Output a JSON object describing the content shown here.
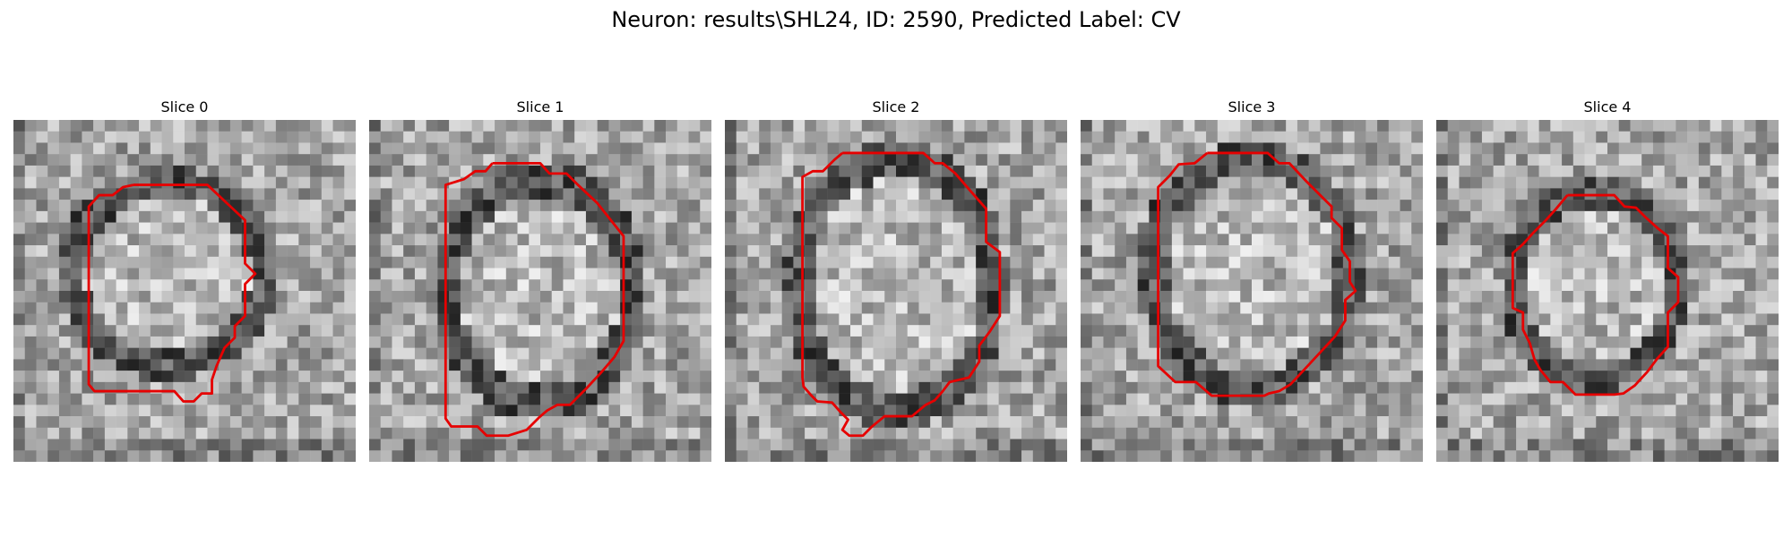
{
  "figure": {
    "title": "Neuron: results\\SHL24, ID: 2590, Predicted Label: CV"
  },
  "colors": {
    "contour": "#e60000",
    "grayscale_dark": "#1a1a1a",
    "grayscale_light": "#f2f2f2"
  },
  "slices": [
    {
      "title": "Slice 0"
    },
    {
      "title": "Slice 1"
    },
    {
      "title": "Slice 2"
    },
    {
      "title": "Slice 3"
    },
    {
      "title": "Slice 4"
    }
  ]
}
